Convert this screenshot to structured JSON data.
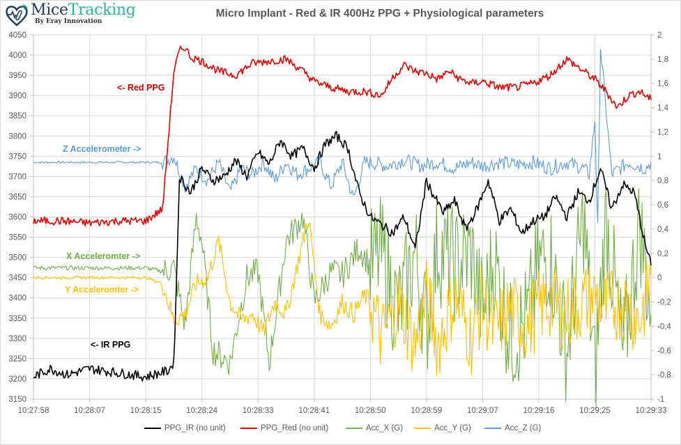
{
  "logo": {
    "brand_part1": "Mice",
    "brand_part2": "Tracking",
    "tagline": "By Eray Innovation"
  },
  "chart_data": {
    "type": "line",
    "title": "Micro Implant - Red & IR 400Hz PPG + Physiological parameters",
    "xlabel": "",
    "ylabel": "",
    "x_tick_labels": [
      "10:27:58",
      "10:28:07",
      "10:28:15",
      "10:28:24",
      "10:28:33",
      "10:28:41",
      "10:28:50",
      "10:28:59",
      "10:29:07",
      "10:29:16",
      "10:29:25",
      "10:29:33"
    ],
    "xlim": [
      0,
      11
    ],
    "x_units": "tick index (equal spacing between time ticks)",
    "y_left": {
      "ylim": [
        3150,
        4050
      ],
      "step": 50,
      "tick_labels": [
        "3150",
        "3200",
        "3250",
        "3300",
        "3350",
        "3400",
        "3450",
        "3500",
        "3550",
        "3600",
        "3650",
        "3700",
        "3750",
        "3800",
        "3850",
        "3900",
        "3950",
        "4000",
        "4050"
      ]
    },
    "y_right": {
      "ylim": [
        -1,
        2
      ],
      "step": 0.2,
      "tick_labels": [
        "-1",
        "-0,8",
        "-0,6",
        "-0,4",
        "-0,2",
        "0",
        "0,2",
        "0,4",
        "0,6",
        "0,8",
        "1",
        "1,2",
        "1,4",
        "1,6",
        "1,8",
        "2"
      ]
    },
    "grid": true,
    "legend_position": "bottom",
    "series": [
      {
        "name": "PPG_IR (no unit)",
        "axis": "left",
        "color": "#000000",
        "x": [
          0,
          0.3,
          0.6,
          1,
          1.5,
          2,
          2.4,
          2.5,
          2.55,
          2.6,
          2.8,
          3,
          3.2,
          3.4,
          3.6,
          3.8,
          4,
          4.2,
          4.4,
          4.6,
          4.8,
          5,
          5.2,
          5.4,
          5.6,
          5.8,
          6,
          6.2,
          6.4,
          6.6,
          6.8,
          7,
          7.1,
          7.3,
          7.5,
          7.7,
          7.9,
          8.1,
          8.3,
          8.5,
          8.7,
          8.9,
          9.1,
          9.3,
          9.5,
          9.7,
          9.9,
          10.1,
          10.3,
          10.5,
          10.7,
          10.9,
          11
        ],
        "y": [
          3205,
          3225,
          3210,
          3225,
          3215,
          3205,
          3220,
          3240,
          3450,
          3700,
          3660,
          3720,
          3690,
          3700,
          3740,
          3700,
          3760,
          3730,
          3790,
          3750,
          3770,
          3720,
          3780,
          3800,
          3770,
          3660,
          3600,
          3580,
          3560,
          3600,
          3520,
          3690,
          3660,
          3610,
          3640,
          3570,
          3620,
          3690,
          3590,
          3620,
          3560,
          3590,
          3600,
          3650,
          3600,
          3660,
          3640,
          3720,
          3620,
          3680,
          3660,
          3530,
          3480
        ]
      },
      {
        "name": "PPG_Red (no unit)",
        "axis": "left",
        "color": "#e00000",
        "x": [
          0,
          0.5,
          1,
          1.5,
          2,
          2.3,
          2.5,
          2.6,
          2.7,
          2.8,
          3,
          3.3,
          3.6,
          3.9,
          4.2,
          4.5,
          4.8,
          5,
          5.3,
          5.6,
          5.9,
          6.2,
          6.4,
          6.6,
          6.8,
          7,
          7.2,
          7.4,
          7.6,
          7.8,
          8,
          8.3,
          8.6,
          8.9,
          9.2,
          9.5,
          9.8,
          10,
          10.2,
          10.4,
          10.6,
          10.8,
          11
        ],
        "y": [
          3590,
          3590,
          3585,
          3590,
          3590,
          3620,
          3960,
          4010,
          4020,
          3995,
          3985,
          3960,
          3950,
          3980,
          3985,
          3990,
          3960,
          3935,
          3920,
          3910,
          3910,
          3900,
          3945,
          3975,
          3960,
          3955,
          3940,
          3960,
          3940,
          3930,
          3935,
          3920,
          3920,
          3930,
          3950,
          3990,
          3960,
          3940,
          3910,
          3870,
          3900,
          3910,
          3890
        ]
      },
      {
        "name": "Acc_X (G)",
        "axis": "right",
        "color": "#70ad47",
        "x": [
          0,
          1,
          2,
          2.3,
          2.5,
          2.7,
          2.9,
          3,
          3.2,
          3.5,
          3.8,
          4,
          4.2,
          4.5,
          4.8,
          5,
          5.3,
          5.5,
          5.8,
          6,
          6.2,
          6.5,
          6.8,
          7,
          7.2,
          7.5,
          7.8,
          8,
          8.2,
          8.5,
          8.8,
          9,
          9.2,
          9.5,
          9.8,
          10,
          10.2,
          10.5,
          10.8,
          11
        ],
        "y": [
          0.08,
          0.08,
          0.08,
          0.05,
          0.08,
          -0.4,
          0.5,
          0.3,
          -0.6,
          -0.7,
          0.0,
          0.05,
          -0.7,
          0.3,
          0.5,
          -0.2,
          0.05,
          0.02,
          0.25,
          0.1,
          0.2,
          -0.3,
          0.2,
          -0.4,
          0.25,
          0.1,
          0.2,
          -0.3,
          0.15,
          -0.5,
          -0.35,
          0.1,
          0.2,
          -0.6,
          0.5,
          -0.8,
          0.5,
          -0.65,
          0.45,
          -0.3
        ]
      },
      {
        "name": "Acc_Y (G)",
        "axis": "right",
        "color": "#ffc000",
        "x": [
          0,
          1,
          2,
          2.3,
          2.5,
          2.7,
          2.9,
          3.1,
          3.3,
          3.5,
          3.7,
          3.9,
          4.1,
          4.3,
          4.5,
          4.7,
          4.9,
          5.1,
          5.3,
          5.5,
          5.7,
          5.9,
          6,
          6.2,
          6.5,
          6.8,
          7,
          7.2,
          7.5,
          7.8,
          8,
          8.2,
          8.5,
          8.8,
          9,
          9.2,
          9.5,
          9.8,
          10,
          10.2,
          10.5,
          10.8,
          11
        ],
        "y": [
          0.0,
          0.0,
          0.0,
          -0.05,
          -0.35,
          -0.3,
          -0.05,
          0.0,
          0.3,
          -0.2,
          -0.35,
          -0.3,
          -0.45,
          -0.2,
          -0.3,
          0.1,
          0.5,
          -0.3,
          -0.4,
          -0.2,
          -0.3,
          -0.15,
          -0.2,
          -0.5,
          -0.2,
          -0.55,
          -0.15,
          -0.55,
          -0.15,
          -0.5,
          -0.2,
          -0.45,
          -0.25,
          -0.4,
          -0.25,
          -0.2,
          -0.3,
          -0.2,
          -0.15,
          -0.25,
          -0.2,
          -0.35,
          0.0
        ]
      },
      {
        "name": "Acc_Z (G)",
        "axis": "right",
        "color": "#5b9bd5",
        "x": [
          0,
          1,
          2,
          2.3,
          2.5,
          2.7,
          2.9,
          3.1,
          3.3,
          3.5,
          3.7,
          3.9,
          4.1,
          4.3,
          4.5,
          4.7,
          4.9,
          5.1,
          5.3,
          5.5,
          5.7,
          5.9,
          6,
          6.3,
          6.6,
          6.9,
          7.2,
          7.5,
          7.8,
          8,
          8.3,
          8.6,
          8.9,
          9.2,
          9.5,
          9.8,
          9.9,
          10,
          10.05,
          10.1,
          10.3,
          10.6,
          10.9,
          11
        ],
        "y": [
          0.95,
          0.95,
          0.95,
          0.95,
          1.0,
          0.75,
          0.9,
          0.8,
          0.95,
          0.7,
          0.9,
          0.85,
          0.95,
          0.8,
          0.95,
          0.85,
          0.9,
          0.95,
          0.75,
          0.95,
          0.65,
          0.95,
          0.95,
          0.92,
          0.97,
          0.92,
          0.95,
          0.9,
          0.95,
          0.92,
          0.95,
          0.93,
          0.95,
          0.9,
          0.95,
          0.9,
          0.85,
          1.3,
          0.4,
          1.9,
          0.85,
          0.95,
          0.9,
          0.95
        ]
      }
    ],
    "annotations": [
      {
        "text": "<- Red PPG",
        "color": "#c00000"
      },
      {
        "text": "Z Accelerometer ->",
        "color": "#5b9bd5"
      },
      {
        "text": "X Acceleromter ->",
        "color": "#70ad47"
      },
      {
        "text": "Y Acceleromter ->",
        "color": "#ffc000"
      },
      {
        "text": "<- IR PPG",
        "color": "#000000"
      }
    ]
  }
}
